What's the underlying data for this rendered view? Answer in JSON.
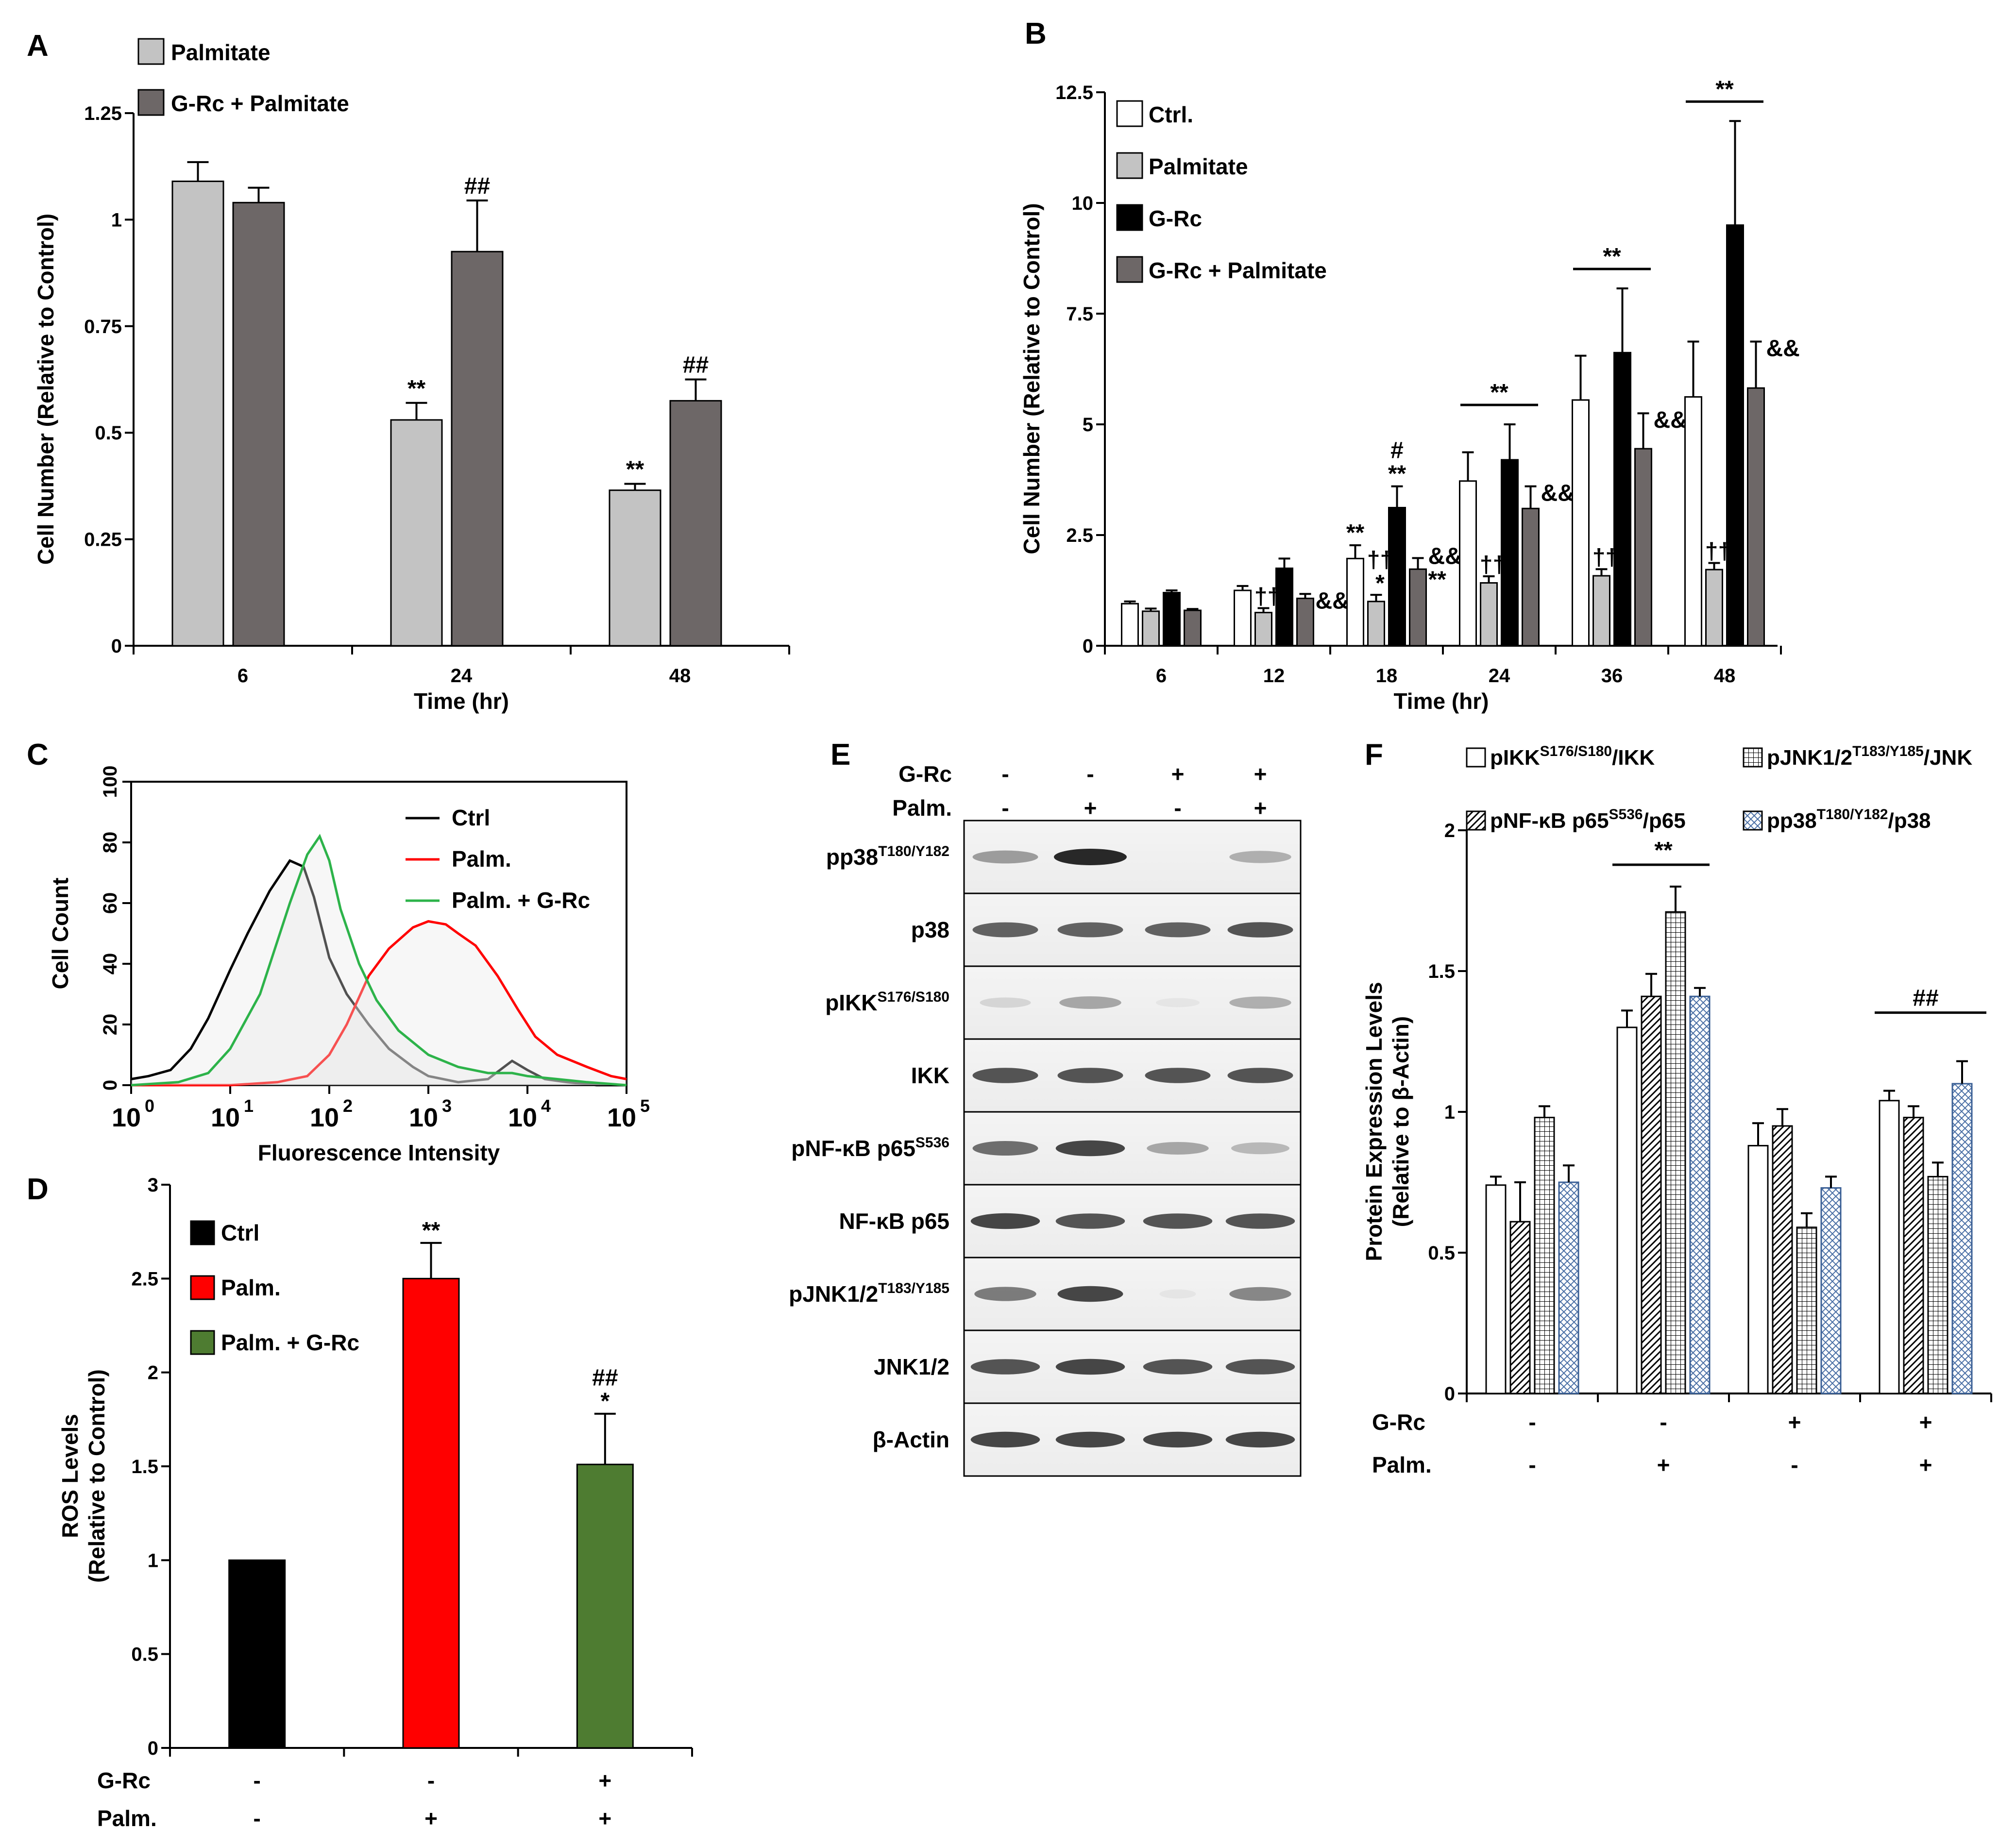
{
  "colors": {
    "white": "#ffffff",
    "lightgray": "#c3c3c3",
    "darkgray": "#6d6767",
    "black": "#000000",
    "red": "#ff0000",
    "green": "#4e7c31",
    "flow_green": "#2db34a"
  },
  "chart_data": [
    {
      "id": "A",
      "type": "bar",
      "panel_label": "A",
      "categories": [
        "6",
        "24",
        "48"
      ],
      "xlabel": "Time (hr)",
      "ylabel": "Cell Number (Relative to Control)",
      "ylim": [
        0,
        1.25
      ],
      "yticks": [
        "0",
        "0.25",
        "0.5",
        "0.75",
        "1",
        "1.25"
      ],
      "legend_placement": "top-left",
      "series": [
        {
          "name": "Palmitate",
          "color": "#c3c3c3",
          "values": [
            1.09,
            0.53,
            0.365
          ],
          "errors": [
            0.045,
            0.04,
            0.015
          ],
          "annotations": [
            "",
            "**",
            "**"
          ]
        },
        {
          "name": "G-Rc + Palmitate",
          "color": "#6d6767",
          "values": [
            1.04,
            0.925,
            0.575
          ],
          "errors": [
            0.035,
            0.12,
            0.05
          ],
          "annotations": [
            "",
            "##",
            "##"
          ]
        }
      ]
    },
    {
      "id": "B",
      "type": "bar",
      "panel_label": "B",
      "categories": [
        "6",
        "12",
        "18",
        "24",
        "36",
        "48"
      ],
      "xlabel": "Time (hr)",
      "ylabel": "Cell Number (Relative to Control)",
      "ylim": [
        0,
        12.5
      ],
      "yticks": [
        "0",
        "2.5",
        "5",
        "7.5",
        "10",
        "12.5"
      ],
      "legend_placement": "top-left",
      "series": [
        {
          "name": "Ctrl.",
          "color": "#ffffff",
          "values": [
            0.95,
            1.25,
            1.97,
            3.72,
            5.55,
            5.62
          ],
          "errors": [
            0.05,
            0.1,
            0.3,
            0.65,
            1.0,
            1.25
          ],
          "annotations": [
            "",
            "",
            "**",
            "",
            "",
            ""
          ]
        },
        {
          "name": "Palmitate",
          "color": "#c3c3c3",
          "values": [
            0.78,
            0.75,
            1.0,
            1.42,
            1.58,
            1.72
          ],
          "errors": [
            0.06,
            0.1,
            0.15,
            0.15,
            0.15,
            0.15
          ],
          "annotations": [
            "",
            "††",
            "††\n*",
            "††",
            "††",
            "††"
          ]
        },
        {
          "name": "G-Rc",
          "color": "#000000",
          "values": [
            1.2,
            1.75,
            3.12,
            4.2,
            6.62,
            9.5
          ],
          "errors": [
            0.05,
            0.22,
            0.48,
            0.8,
            1.45,
            2.35
          ],
          "annotations": [
            "",
            "",
            "#\n**",
            "",
            "",
            ""
          ]
        },
        {
          "name": "G-Rc + Palmitate",
          "color": "#6d6767",
          "values": [
            0.8,
            1.07,
            1.73,
            3.1,
            4.45,
            5.82
          ],
          "errors": [
            0.03,
            0.1,
            0.25,
            0.5,
            0.8,
            1.05
          ],
          "annotations": [
            "",
            "&&",
            "&&\n**",
            "&&",
            "&&",
            "&&"
          ]
        }
      ],
      "group_annotations": [
        {
          "categories": [
            "24"
          ],
          "text": "**"
        },
        {
          "categories": [
            "36"
          ],
          "text": "**"
        },
        {
          "categories": [
            "48"
          ],
          "text": "**"
        }
      ]
    },
    {
      "id": "C",
      "type": "line",
      "panel_label": "C",
      "xlabel": "Fluorescence Intensity",
      "ylabel": "Cell Count",
      "xscale": "log",
      "xlim": [
        1,
        100000
      ],
      "ylim": [
        0,
        100
      ],
      "xticks": [
        "10^0",
        "10^1",
        "10^2",
        "10^3",
        "10^4",
        "10^5"
      ],
      "yticks": [
        "0",
        "20",
        "40",
        "60",
        "80",
        "100"
      ],
      "legend_placement": "top-right",
      "series": [
        {
          "name": "Ctrl",
          "color": "#000000",
          "x": [
            1,
            1.5,
            2.5,
            4,
            6,
            10,
            15,
            25,
            40,
            55,
            70,
            100,
            150,
            250,
            400,
            700,
            1000,
            2000,
            4000,
            7000,
            10000,
            15000,
            25000,
            50000,
            100000
          ],
          "y": [
            2,
            3,
            5,
            12,
            22,
            38,
            50,
            64,
            74,
            72,
            62,
            42,
            30,
            20,
            12,
            6,
            3,
            1,
            2,
            8,
            5,
            2,
            1,
            0,
            0
          ]
        },
        {
          "name": "Palm.",
          "color": "#ff0000",
          "x": [
            1,
            10,
            30,
            60,
            100,
            150,
            250,
            400,
            700,
            1000,
            1500,
            2000,
            3000,
            5000,
            8000,
            12000,
            20000,
            40000,
            70000,
            100000
          ],
          "y": [
            0,
            0,
            1,
            3,
            10,
            20,
            36,
            45,
            52,
            54,
            53,
            50,
            46,
            36,
            25,
            16,
            10,
            6,
            3,
            2
          ]
        },
        {
          "name": "Palm. + G-Rc",
          "color": "#2db34a",
          "x": [
            1,
            3,
            6,
            10,
            20,
            40,
            60,
            80,
            100,
            130,
            200,
            300,
            500,
            1000,
            2000,
            4000,
            7000,
            10000,
            20000,
            40000,
            100000
          ],
          "y": [
            0,
            1,
            4,
            12,
            30,
            60,
            76,
            82,
            74,
            58,
            40,
            28,
            18,
            10,
            6,
            4,
            4,
            3,
            2,
            1,
            0
          ]
        }
      ]
    },
    {
      "id": "D",
      "type": "bar",
      "panel_label": "D",
      "categories": [
        "1",
        "2",
        "3"
      ],
      "xlabel": "",
      "ylabel": "ROS Levels (Relative to Control)",
      "ylim": [
        0,
        3
      ],
      "yticks": [
        "0",
        "0.5",
        "1",
        "1.5",
        "2",
        "2.5",
        "3"
      ],
      "legend_placement": "top-left",
      "values": [
        1.0,
        2.5,
        1.51
      ],
      "errors": [
        0,
        0.19,
        0.27
      ],
      "colors": [
        "#000000",
        "#ff0000",
        "#4e7c31"
      ],
      "series_names": [
        "Ctrl",
        "Palm.",
        "Palm. + G-Rc"
      ],
      "annotations": [
        "",
        "**",
        "##\n*"
      ],
      "condition_rows": [
        {
          "label": "G-Rc",
          "values": [
            "-",
            "-",
            "+"
          ]
        },
        {
          "label": "Palm.",
          "values": [
            "-",
            "+",
            "+"
          ]
        }
      ]
    },
    {
      "id": "F",
      "type": "bar",
      "panel_label": "F",
      "categories": [
        "1",
        "2",
        "3",
        "4"
      ],
      "xlabel": "",
      "ylabel": "Protein Expression Levels (Relative to β-Actin)",
      "ylim": [
        0,
        2
      ],
      "yticks": [
        "0",
        "0.5",
        "1",
        "1.5",
        "2"
      ],
      "legend_placement": "top",
      "series": [
        {
          "name": "pIKK S176/S180 /IKK",
          "name_main": "pIKK",
          "name_sup": "S176/S180",
          "name_tail": "/IKK",
          "pattern": "none",
          "values": [
            0.74,
            1.3,
            0.88,
            1.04
          ],
          "errors": [
            0.03,
            0.06,
            0.08,
            0.035
          ]
        },
        {
          "name": "pNF-κB p65 S536 /p65",
          "name_main": "pNF-κB p65",
          "name_sup": "S536",
          "name_tail": "/p65",
          "pattern": "diagonal",
          "values": [
            0.61,
            1.41,
            0.95,
            0.98
          ],
          "errors": [
            0.14,
            0.08,
            0.06,
            0.04
          ]
        },
        {
          "name": "pJNK1/2 T183/Y185 /JNK",
          "name_main": "pJNK1/2",
          "name_sup": "T183/Y185",
          "name_tail": "/JNK",
          "pattern": "grid",
          "values": [
            0.98,
            1.71,
            0.59,
            0.77
          ],
          "errors": [
            0.04,
            0.09,
            0.05,
            0.05
          ]
        },
        {
          "name": "pp38 T180/Y182 /p38",
          "name_main": "pp38",
          "name_sup": "T180/Y182",
          "name_tail": "/p38",
          "pattern": "crosshatch",
          "values": [
            0.75,
            1.41,
            0.73,
            1.1
          ],
          "errors": [
            0.06,
            0.03,
            0.04,
            0.08
          ]
        }
      ],
      "group_annotations": [
        {
          "categories": [
            "2"
          ],
          "text": "**"
        },
        {
          "categories": [
            "4"
          ],
          "text": "##"
        }
      ],
      "condition_rows": [
        {
          "label": "G-Rc",
          "values": [
            "-",
            "-",
            "+",
            "+"
          ]
        },
        {
          "label": "Palm.",
          "values": [
            "-",
            "+",
            "-",
            "+"
          ]
        }
      ]
    }
  ],
  "blot": {
    "panel_label": "E",
    "conditions": [
      {
        "label": "G-Rc",
        "values": [
          "-",
          "-",
          "+",
          "+"
        ]
      },
      {
        "label": "Palm.",
        "values": [
          "-",
          "+",
          "-",
          "+"
        ]
      }
    ],
    "rows": [
      {
        "label_main": "pp38",
        "label_sup": "T180/Y182",
        "intensities": [
          0.55,
          1.0,
          0.0,
          0.45
        ],
        "widths": [
          0.9,
          1.0,
          0.9,
          0.85
        ]
      },
      {
        "label_main": "p38",
        "label_sup": "",
        "intensities": [
          0.8,
          0.8,
          0.8,
          0.85
        ],
        "widths": [
          0.9,
          0.9,
          0.9,
          0.9
        ]
      },
      {
        "label_main": "pIKK",
        "label_sup": "S176/S180",
        "intensities": [
          0.2,
          0.5,
          0.05,
          0.45
        ],
        "widths": [
          0.7,
          0.85,
          0.6,
          0.85
        ]
      },
      {
        "label_main": "IKK",
        "label_sup": "",
        "intensities": [
          0.85,
          0.85,
          0.85,
          0.85
        ],
        "widths": [
          0.9,
          0.9,
          0.9,
          0.9
        ]
      },
      {
        "label_main": "pNF-κB p65",
        "label_sup": "S536",
        "intensities": [
          0.75,
          0.9,
          0.5,
          0.4
        ],
        "widths": [
          0.9,
          0.95,
          0.85,
          0.8
        ]
      },
      {
        "label_main": "NF-κB p65",
        "label_sup": "",
        "intensities": [
          0.9,
          0.85,
          0.85,
          0.85
        ],
        "widths": [
          0.95,
          0.95,
          0.95,
          0.95
        ]
      },
      {
        "label_main": "pJNK1/2",
        "label_sup": "T183/Y185",
        "intensities": [
          0.7,
          0.9,
          0.05,
          0.65
        ],
        "widths": [
          0.85,
          0.9,
          0.5,
          0.85
        ]
      },
      {
        "label_main": "JNK1/2",
        "label_sup": "",
        "intensities": [
          0.85,
          0.9,
          0.85,
          0.85
        ],
        "widths": [
          0.95,
          0.95,
          0.95,
          0.95
        ]
      },
      {
        "label_main": "β-Actin",
        "label_sup": "",
        "intensities": [
          0.9,
          0.9,
          0.9,
          0.9
        ],
        "widths": [
          0.95,
          0.95,
          0.95,
          0.95
        ]
      }
    ]
  }
}
